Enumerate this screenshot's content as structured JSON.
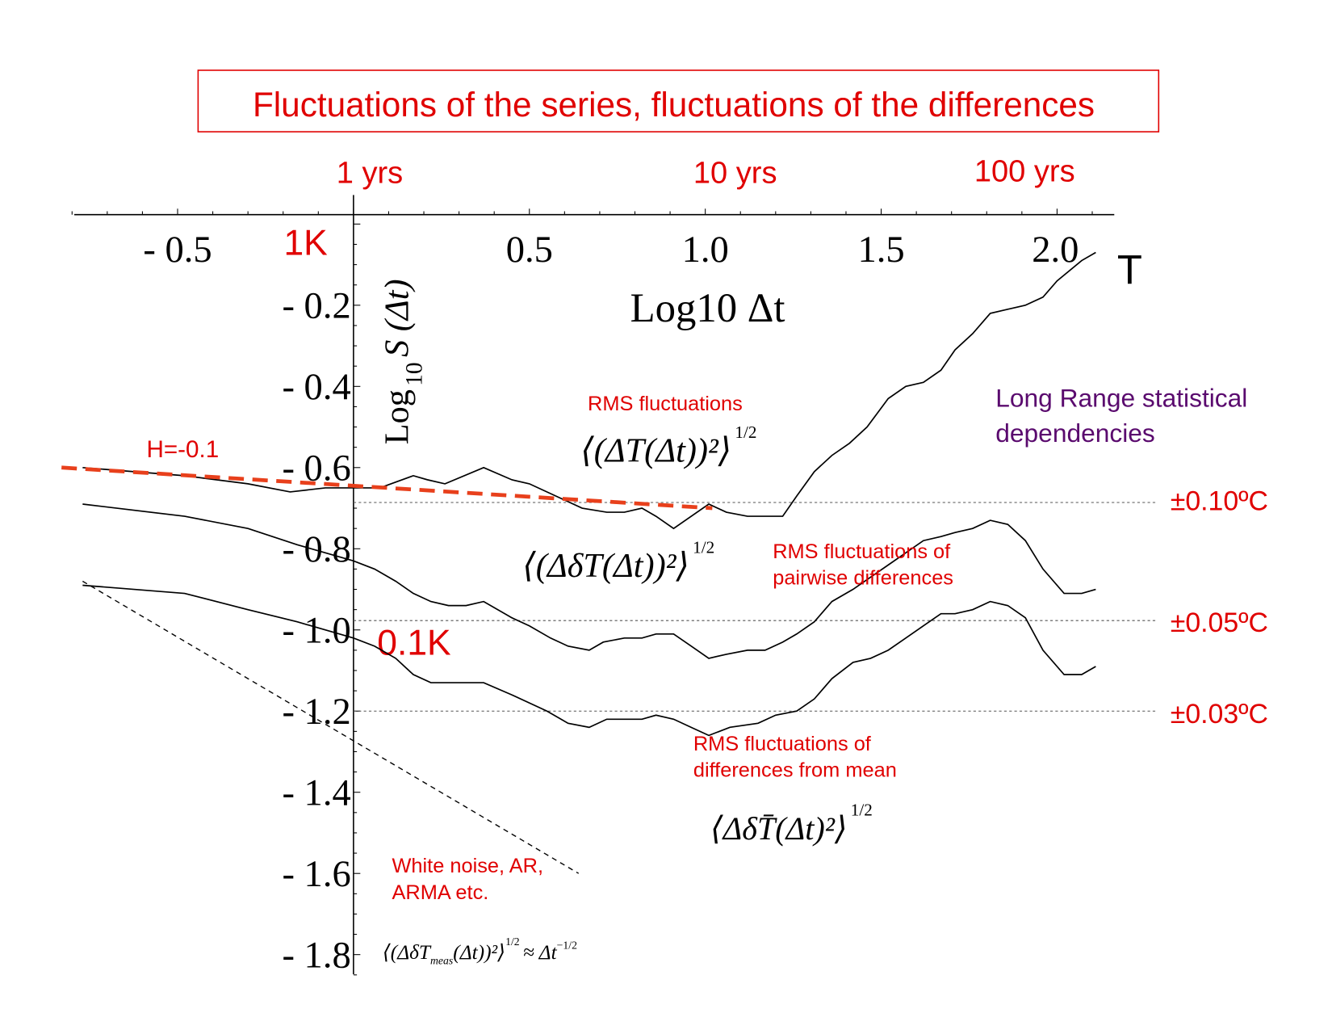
{
  "chart_data": {
    "type": "line",
    "title": "Fluctuations of the series, fluctuations of the differences",
    "xlabel": "Log10 Δt",
    "xlabel_base": "Log",
    "xlabel_sub": "10",
    "xlabel_var": "Δt",
    "ylabel": "Log10 S (Δt)",
    "ylabel_base": "Log",
    "ylabel_sub": "10",
    "ylabel_var": "S (Δt)",
    "xlim": [
      -0.8,
      2.15
    ],
    "ylim": [
      -1.85,
      0
    ],
    "x_ticks": [
      {
        "value": -0.5,
        "label": "- 0.5"
      },
      {
        "value": 0.5,
        "label": "0.5"
      },
      {
        "value": 1.0,
        "label": "1.0"
      },
      {
        "value": 1.5,
        "label": "1.5"
      },
      {
        "value": 2.0,
        "label": "2.0"
      }
    ],
    "y_ticks": [
      {
        "value": -0.2,
        "label": "- 0.2"
      },
      {
        "value": -0.4,
        "label": "- 0.4"
      },
      {
        "value": -0.6,
        "label": "- 0.6"
      },
      {
        "value": -0.8,
        "label": "- 0.8"
      },
      {
        "value": -1.0,
        "label": "- 1.0"
      },
      {
        "value": -1.2,
        "label": "- 1.2"
      },
      {
        "value": -1.4,
        "label": "- 1.4"
      },
      {
        "value": -1.6,
        "label": "- 1.6"
      },
      {
        "value": -1.8,
        "label": "- 1.8"
      }
    ],
    "top_axis_labels": [
      {
        "value": 0,
        "label": "1 yrs"
      },
      {
        "value": 1,
        "label": "10 yrs"
      },
      {
        "value": 2,
        "label": "100 yrs"
      }
    ],
    "y_marks": [
      {
        "value": 0,
        "label": "1K"
      },
      {
        "value": -1,
        "label": "0.1K"
      }
    ],
    "series_end_label": "T",
    "series": [
      {
        "name": "RMS fluctuations",
        "formula": "⟨(ΔT(Δt))²⟩",
        "exponent": "1/2",
        "points": [
          [
            -0.77,
            -0.6
          ],
          [
            -0.48,
            -0.62
          ],
          [
            -0.3,
            -0.64
          ],
          [
            -0.18,
            -0.66
          ],
          [
            -0.08,
            -0.65
          ],
          [
            0,
            -0.65
          ],
          [
            0.075,
            -0.65
          ],
          [
            0.17,
            -0.62
          ],
          [
            0.21,
            -0.63
          ],
          [
            0.26,
            -0.64
          ],
          [
            0.37,
            -0.6
          ],
          [
            0.45,
            -0.63
          ],
          [
            0.5,
            -0.64
          ],
          [
            0.6,
            -0.68
          ],
          [
            0.65,
            -0.7
          ],
          [
            0.72,
            -0.71
          ],
          [
            0.77,
            -0.71
          ],
          [
            0.82,
            -0.7
          ],
          [
            0.86,
            -0.72
          ],
          [
            0.91,
            -0.75
          ],
          [
            1.01,
            -0.69
          ],
          [
            1.06,
            -0.71
          ],
          [
            1.12,
            -0.72
          ],
          [
            1.17,
            -0.72
          ],
          [
            1.22,
            -0.72
          ],
          [
            1.26,
            -0.67
          ],
          [
            1.31,
            -0.61
          ],
          [
            1.36,
            -0.57
          ],
          [
            1.41,
            -0.54
          ],
          [
            1.46,
            -0.5
          ],
          [
            1.52,
            -0.43
          ],
          [
            1.57,
            -0.4
          ],
          [
            1.62,
            -0.39
          ],
          [
            1.67,
            -0.36
          ],
          [
            1.71,
            -0.31
          ],
          [
            1.76,
            -0.27
          ],
          [
            1.81,
            -0.22
          ],
          [
            1.86,
            -0.21
          ],
          [
            1.91,
            -0.2
          ],
          [
            1.96,
            -0.18
          ],
          [
            2.0,
            -0.14
          ],
          [
            2.07,
            -0.09
          ],
          [
            2.11,
            -0.07
          ]
        ]
      },
      {
        "name": "RMS fluctuations of pairwise differences",
        "label_lines": [
          "RMS fluctuations of",
          "pairwise differences"
        ],
        "formula": "⟨(ΔδT(Δt))²⟩",
        "exponent": "1/2",
        "points": [
          [
            -0.77,
            -0.69
          ],
          [
            -0.48,
            -0.72
          ],
          [
            -0.3,
            -0.75
          ],
          [
            -0.16,
            -0.79
          ],
          [
            0,
            -0.83
          ],
          [
            0.06,
            -0.85
          ],
          [
            0.12,
            -0.88
          ],
          [
            0.17,
            -0.91
          ],
          [
            0.22,
            -0.93
          ],
          [
            0.27,
            -0.94
          ],
          [
            0.32,
            -0.94
          ],
          [
            0.37,
            -0.93
          ],
          [
            0.45,
            -0.97
          ],
          [
            0.5,
            -0.99
          ],
          [
            0.56,
            -1.02
          ],
          [
            0.61,
            -1.04
          ],
          [
            0.67,
            -1.05
          ],
          [
            0.71,
            -1.03
          ],
          [
            0.77,
            -1.02
          ],
          [
            0.82,
            -1.02
          ],
          [
            0.86,
            -1.01
          ],
          [
            0.91,
            -1.01
          ],
          [
            0.96,
            -1.04
          ],
          [
            1.01,
            -1.07
          ],
          [
            1.06,
            -1.06
          ],
          [
            1.12,
            -1.05
          ],
          [
            1.17,
            -1.05
          ],
          [
            1.22,
            -1.03
          ],
          [
            1.26,
            -1.01
          ],
          [
            1.31,
            -0.98
          ],
          [
            1.36,
            -0.93
          ],
          [
            1.42,
            -0.9
          ],
          [
            1.47,
            -0.87
          ],
          [
            1.52,
            -0.84
          ],
          [
            1.57,
            -0.81
          ],
          [
            1.62,
            -0.78
          ],
          [
            1.67,
            -0.77
          ],
          [
            1.71,
            -0.76
          ],
          [
            1.76,
            -0.75
          ],
          [
            1.81,
            -0.73
          ],
          [
            1.86,
            -0.74
          ],
          [
            1.91,
            -0.78
          ],
          [
            1.96,
            -0.85
          ],
          [
            2.02,
            -0.91
          ],
          [
            2.07,
            -0.91
          ],
          [
            2.11,
            -0.9
          ]
        ]
      },
      {
        "name": "RMS fluctuations of differences from mean",
        "label_lines": [
          "RMS fluctuations of",
          "differences from mean"
        ],
        "formula": "⟨ΔδT̄(Δt)²⟩",
        "exponent": "1/2",
        "points": [
          [
            -0.77,
            -0.89
          ],
          [
            -0.48,
            -0.91
          ],
          [
            -0.3,
            -0.95
          ],
          [
            -0.16,
            -0.98
          ],
          [
            0,
            -1.02
          ],
          [
            0.06,
            -1.04
          ],
          [
            0.12,
            -1.07
          ],
          [
            0.17,
            -1.11
          ],
          [
            0.22,
            -1.13
          ],
          [
            0.27,
            -1.13
          ],
          [
            0.32,
            -1.13
          ],
          [
            0.37,
            -1.13
          ],
          [
            0.45,
            -1.16
          ],
          [
            0.55,
            -1.2
          ],
          [
            0.61,
            -1.23
          ],
          [
            0.67,
            -1.24
          ],
          [
            0.72,
            -1.22
          ],
          [
            0.77,
            -1.22
          ],
          [
            0.82,
            -1.22
          ],
          [
            0.86,
            -1.21
          ],
          [
            0.91,
            -1.22
          ],
          [
            0.96,
            -1.24
          ],
          [
            1.01,
            -1.26
          ],
          [
            1.07,
            -1.24
          ],
          [
            1.15,
            -1.23
          ],
          [
            1.2,
            -1.21
          ],
          [
            1.26,
            -1.2
          ],
          [
            1.31,
            -1.17
          ],
          [
            1.36,
            -1.12
          ],
          [
            1.42,
            -1.08
          ],
          [
            1.47,
            -1.07
          ],
          [
            1.52,
            -1.05
          ],
          [
            1.57,
            -1.02
          ],
          [
            1.62,
            -0.99
          ],
          [
            1.67,
            -0.96
          ],
          [
            1.71,
            -0.96
          ],
          [
            1.76,
            -0.95
          ],
          [
            1.81,
            -0.93
          ],
          [
            1.86,
            -0.94
          ],
          [
            1.91,
            -0.97
          ],
          [
            1.96,
            -1.05
          ],
          [
            2.02,
            -1.11
          ],
          [
            2.07,
            -1.11
          ],
          [
            2.11,
            -1.09
          ]
        ]
      }
    ],
    "fit_line": {
      "label": "H=-0.1",
      "points": [
        [
          -0.83,
          -0.6
        ],
        [
          1.02,
          -0.7
        ]
      ],
      "color": "#e8401c"
    },
    "white_noise_line": {
      "label_lines": [
        "White noise, AR,",
        "ARMA etc."
      ],
      "formula": "⟨(ΔδT",
      "formula_sub": "meas",
      "formula_rest": "(Δt))²⟩",
      "exponent": "1/2",
      "approx": "≈ Δt",
      "approx_exp": "−1/2",
      "points": [
        [
          -0.77,
          -0.88
        ],
        [
          0.64,
          -1.6
        ]
      ]
    },
    "reference_lines": [
      {
        "label": "±0.10ºC",
        "y": -0.686
      },
      {
        "label": "±0.05ºC",
        "y": -0.977
      },
      {
        "label": "±0.03ºC",
        "y": -1.2
      }
    ],
    "annotation_long_range": [
      "Long Range statistical",
      "dependencies"
    ],
    "colors": {
      "red": "#e00000",
      "purple": "#5a0a6e",
      "fit": "#e8401c"
    }
  }
}
